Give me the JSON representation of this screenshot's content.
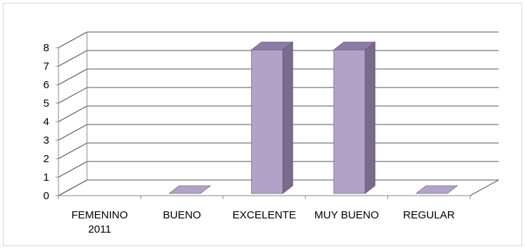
{
  "chart_data": {
    "type": "bar",
    "categories": [
      {
        "lines": [
          "FEMENINO",
          "2011"
        ]
      },
      {
        "lines": [
          "BUENO"
        ]
      },
      {
        "lines": [
          "EXCELENTE"
        ]
      },
      {
        "lines": [
          "MUY BUENO"
        ]
      },
      {
        "lines": [
          "REGULAR"
        ]
      }
    ],
    "values": [
      null,
      0,
      8,
      8,
      0
    ],
    "yticks": [
      "0",
      "1",
      "2",
      "3",
      "4",
      "5",
      "6",
      "7",
      "8"
    ],
    "ylim": [
      0,
      8
    ],
    "grid": true,
    "legend": "none",
    "colors": {
      "bar_front": "#b3a2c7",
      "bar_side": "#7a6a8c",
      "bar_top": "#8d7ba3",
      "bar_edge": "#5f506f",
      "grid": "#555555",
      "axis": "#888888"
    }
  }
}
